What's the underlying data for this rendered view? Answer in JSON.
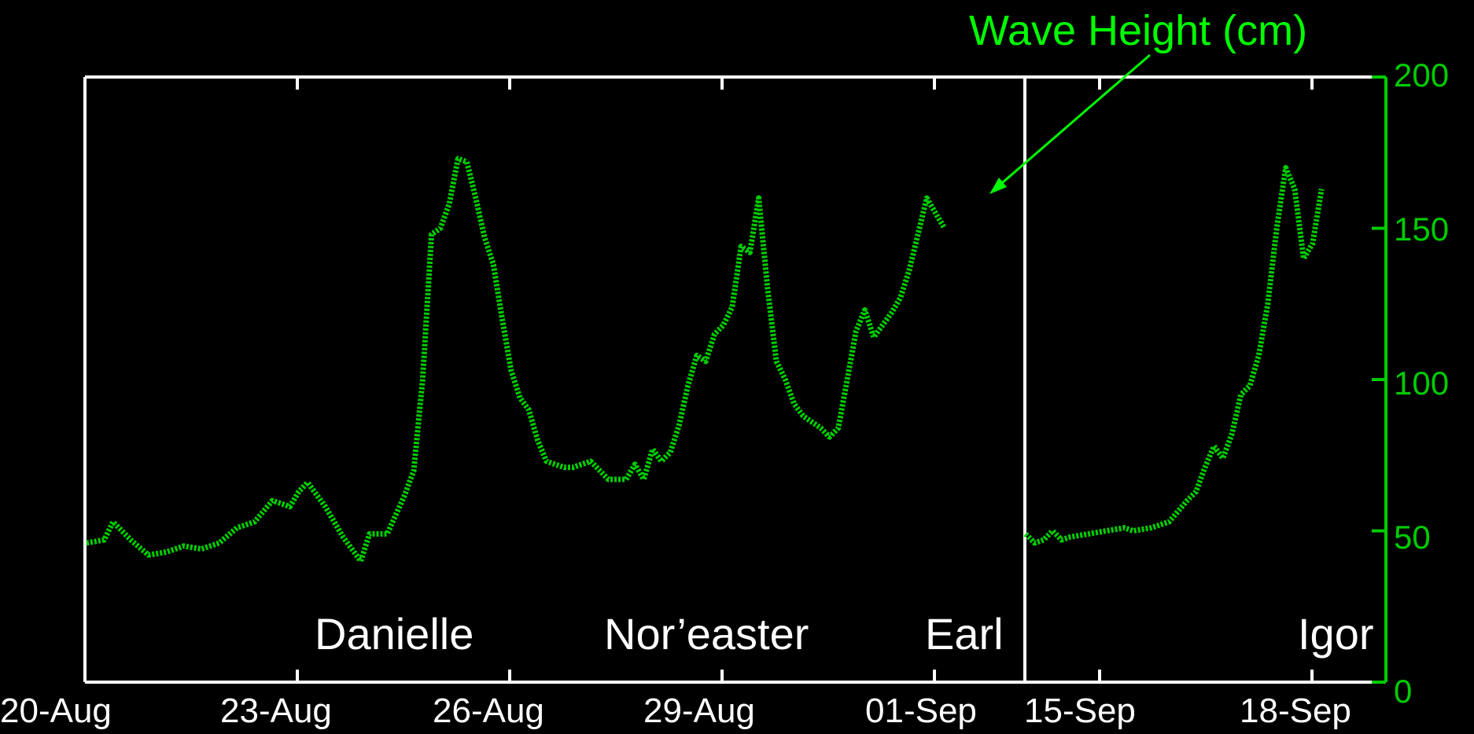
{
  "chart_data": {
    "type": "line",
    "title": "",
    "annotation": "Wave Height (cm)",
    "ylabel": "",
    "ylim": [
      0,
      200
    ],
    "yticks": [
      "0",
      "50",
      "100",
      "150",
      "200"
    ],
    "xticks": [
      "20-Aug",
      "23-Aug",
      "26-Aug",
      "29-Aug",
      "01-Sep",
      "15-Sep",
      "18-Sep"
    ],
    "storm_labels": [
      "Danielle",
      "Nor’easter",
      "Earl",
      "Igor"
    ],
    "series_color": "#00cc00",
    "panels": [
      {
        "name": "",
        "x_start": "2010-08-20",
        "x_end": "2010-09-02 06:00",
        "points": [
          [
            "2010-08-20 00:00",
            46
          ],
          [
            "2010-08-20 06:00",
            47
          ],
          [
            "2010-08-20 09:00",
            53
          ],
          [
            "2010-08-20 15:00",
            47
          ],
          [
            "2010-08-20 21:00",
            42
          ],
          [
            "2010-08-21 03:00",
            43
          ],
          [
            "2010-08-21 09:00",
            45
          ],
          [
            "2010-08-21 15:00",
            44
          ],
          [
            "2010-08-21 21:00",
            46
          ],
          [
            "2010-08-22 03:00",
            51
          ],
          [
            "2010-08-22 09:00",
            53
          ],
          [
            "2010-08-22 15:00",
            60
          ],
          [
            "2010-08-22 21:00",
            58
          ],
          [
            "2010-08-23 00:00",
            63
          ],
          [
            "2010-08-23 03:00",
            66
          ],
          [
            "2010-08-23 09:00",
            58
          ],
          [
            "2010-08-23 15:00",
            48
          ],
          [
            "2010-08-23 21:00",
            40
          ],
          [
            "2010-08-24 00:00",
            49
          ],
          [
            "2010-08-24 06:00",
            49
          ],
          [
            "2010-08-24 12:00",
            62
          ],
          [
            "2010-08-24 15:00",
            70
          ],
          [
            "2010-08-24 18:00",
            100
          ],
          [
            "2010-08-24 21:00",
            148
          ],
          [
            "2010-08-25 00:00",
            150
          ],
          [
            "2010-08-25 03:00",
            158
          ],
          [
            "2010-08-25 06:00",
            173
          ],
          [
            "2010-08-25 09:00",
            172
          ],
          [
            "2010-08-25 12:00",
            160
          ],
          [
            "2010-08-25 15:00",
            147
          ],
          [
            "2010-08-25 18:00",
            138
          ],
          [
            "2010-08-25 21:00",
            120
          ],
          [
            "2010-08-26 00:00",
            103
          ],
          [
            "2010-08-26 03:00",
            94
          ],
          [
            "2010-08-26 06:00",
            90
          ],
          [
            "2010-08-26 09:00",
            80
          ],
          [
            "2010-08-26 12:00",
            73
          ],
          [
            "2010-08-26 18:00",
            71
          ],
          [
            "2010-08-26 21:00",
            71
          ],
          [
            "2010-08-27 03:00",
            73
          ],
          [
            "2010-08-27 09:00",
            67
          ],
          [
            "2010-08-27 15:00",
            67
          ],
          [
            "2010-08-27 18:00",
            72
          ],
          [
            "2010-08-27 21:00",
            67
          ],
          [
            "2010-08-28 00:00",
            77
          ],
          [
            "2010-08-28 03:00",
            73
          ],
          [
            "2010-08-28 06:00",
            76
          ],
          [
            "2010-08-28 09:00",
            85
          ],
          [
            "2010-08-28 12:00",
            98
          ],
          [
            "2010-08-28 15:00",
            108
          ],
          [
            "2010-08-28 18:00",
            106
          ],
          [
            "2010-08-28 21:00",
            115
          ],
          [
            "2010-08-29 00:00",
            118
          ],
          [
            "2010-08-29 03:00",
            124
          ],
          [
            "2010-08-29 06:00",
            144
          ],
          [
            "2010-08-29 09:00",
            142
          ],
          [
            "2010-08-29 12:00",
            160
          ],
          [
            "2010-08-29 15:00",
            130
          ],
          [
            "2010-08-29 18:00",
            106
          ],
          [
            "2010-08-29 21:00",
            100
          ],
          [
            "2010-08-30 00:00",
            92
          ],
          [
            "2010-08-30 03:00",
            88
          ],
          [
            "2010-08-30 06:00",
            86
          ],
          [
            "2010-08-30 09:00",
            84
          ],
          [
            "2010-08-30 12:00",
            81
          ],
          [
            "2010-08-30 15:00",
            84
          ],
          [
            "2010-08-30 18:00",
            100
          ],
          [
            "2010-08-30 21:00",
            116
          ],
          [
            "2010-08-31 00:00",
            123
          ],
          [
            "2010-08-31 03:00",
            114
          ],
          [
            "2010-08-31 06:00",
            118
          ],
          [
            "2010-08-31 09:00",
            122
          ],
          [
            "2010-08-31 12:00",
            127
          ],
          [
            "2010-08-31 15:00",
            136
          ],
          [
            "2010-08-31 18:00",
            148
          ],
          [
            "2010-08-31 21:00",
            160
          ],
          [
            "2010-09-01 00:00",
            155
          ],
          [
            "2010-09-01 03:00",
            150
          ]
        ]
      },
      {
        "name": "",
        "x_start": "2010-09-13 18:00",
        "x_end": "2010-09-18 18:00",
        "points": [
          [
            "2010-09-13 18:00",
            49
          ],
          [
            "2010-09-13 21:00",
            46
          ],
          [
            "2010-09-14 00:00",
            47
          ],
          [
            "2010-09-14 03:00",
            50
          ],
          [
            "2010-09-14 06:00",
            47
          ],
          [
            "2010-09-14 09:00",
            48
          ],
          [
            "2010-09-14 15:00",
            49
          ],
          [
            "2010-09-14 21:00",
            50
          ],
          [
            "2010-09-15 03:00",
            51
          ],
          [
            "2010-09-15 06:00",
            50
          ],
          [
            "2010-09-15 12:00",
            51
          ],
          [
            "2010-09-15 18:00",
            53
          ],
          [
            "2010-09-16 00:00",
            60
          ],
          [
            "2010-09-16 03:00",
            63
          ],
          [
            "2010-09-16 06:00",
            71
          ],
          [
            "2010-09-16 09:00",
            78
          ],
          [
            "2010-09-16 12:00",
            74
          ],
          [
            "2010-09-16 15:00",
            82
          ],
          [
            "2010-09-16 18:00",
            95
          ],
          [
            "2010-09-16 21:00",
            98
          ],
          [
            "2010-09-17 00:00",
            108
          ],
          [
            "2010-09-17 03:00",
            125
          ],
          [
            "2010-09-17 06:00",
            150
          ],
          [
            "2010-09-17 09:00",
            170
          ],
          [
            "2010-09-17 12:00",
            163
          ],
          [
            "2010-09-17 15:00",
            140
          ],
          [
            "2010-09-17 18:00",
            145
          ],
          [
            "2010-09-17 21:00",
            163
          ]
        ]
      }
    ],
    "grid": false,
    "legend": "none"
  }
}
